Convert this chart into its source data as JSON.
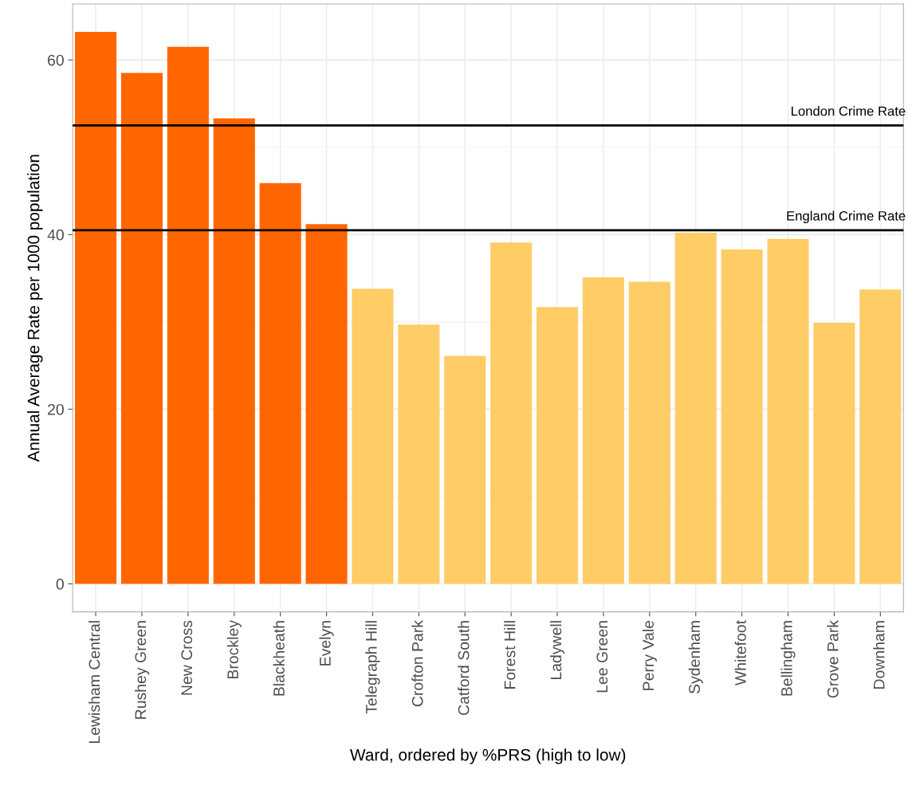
{
  "chart_data": {
    "type": "bar",
    "xlabel": "Ward, ordered by %PRS (high to low)",
    "ylabel": "Annual Average Rate per 1000 population",
    "categories": [
      "Lewisham Central",
      "Rushey Green",
      "New Cross",
      "Brockley",
      "Blackheath",
      "Evelyn",
      "Telegraph Hill",
      "Crofton Park",
      "Catford South",
      "Forest Hill",
      "Ladywell",
      "Lee Green",
      "Perry Vale",
      "Sydenham",
      "Whitefoot",
      "Bellingham",
      "Grove Park",
      "Downham"
    ],
    "values": [
      63.2,
      58.5,
      61.5,
      53.3,
      45.9,
      41.2,
      33.8,
      29.7,
      26.1,
      39.1,
      31.7,
      35.1,
      34.6,
      40.2,
      38.3,
      39.5,
      29.9,
      33.7
    ],
    "colors": [
      "#ff6600",
      "#ff6600",
      "#ff6600",
      "#ff6600",
      "#ff6600",
      "#ff6600",
      "#ffcc66",
      "#ffcc66",
      "#ffcc66",
      "#ffcc66",
      "#ffcc66",
      "#ffcc66",
      "#ffcc66",
      "#ffcc66",
      "#ffcc66",
      "#ffcc66",
      "#ffcc66",
      "#ffcc66"
    ],
    "ylim": [
      -3.2,
      66.4
    ],
    "yticks": [
      0,
      20,
      40,
      60
    ],
    "grid": true,
    "ref_lines": [
      {
        "axis": "y",
        "value": 52.5,
        "label": "London Crime Rate",
        "color": "#000000"
      },
      {
        "axis": "y",
        "value": 40.5,
        "label": "England Crime Rate",
        "color": "#000000"
      }
    ]
  }
}
